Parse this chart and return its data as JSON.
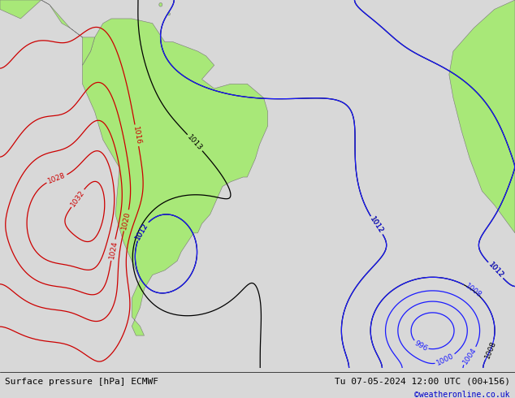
{
  "title_left": "Surface pressure [hPa] ECMWF",
  "title_right": "Tu 07-05-2024 12:00 UTC (00+156)",
  "watermark": "©weatheronline.co.uk",
  "bg_color": "#d8d8d8",
  "land_color": "#a8e878",
  "ocean_color": "#d0d0d0",
  "figsize": [
    6.34,
    4.9
  ],
  "dpi": 100,
  "font_size_title": 8,
  "font_size_wm": 7
}
